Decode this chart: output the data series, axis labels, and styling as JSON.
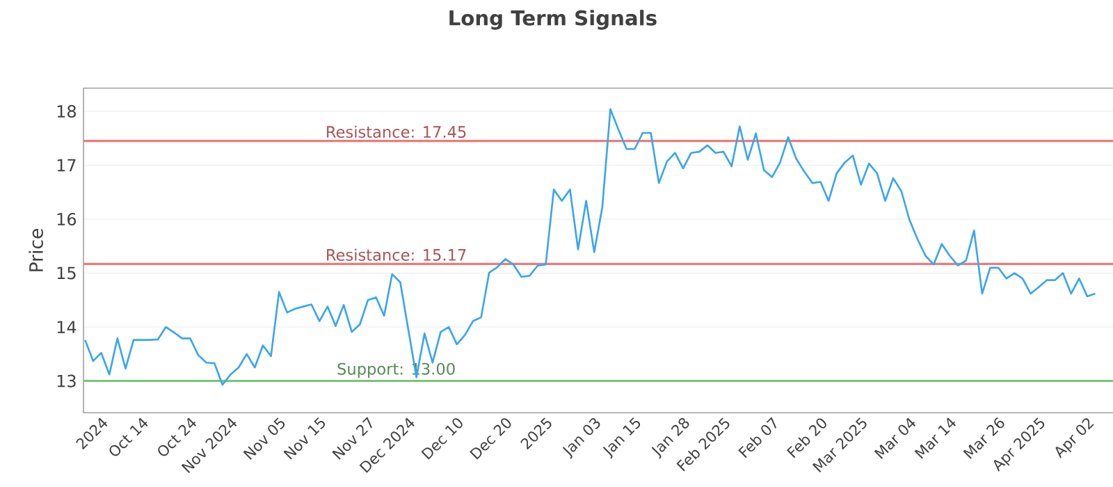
{
  "chart_data": {
    "type": "line",
    "title": "Long Term Signals",
    "ylabel": "Price",
    "categories": [
      null,
      null,
      "2024",
      null,
      null,
      null,
      null,
      "Oct 14",
      null,
      null,
      null,
      null,
      null,
      "Oct 24",
      null,
      null,
      null,
      null,
      "Nov 2024",
      null,
      null,
      null,
      null,
      null,
      "Nov 05",
      null,
      null,
      null,
      null,
      "Nov 15",
      null,
      null,
      null,
      null,
      null,
      "Nov 27",
      null,
      null,
      null,
      null,
      "Dec 2024",
      null,
      null,
      null,
      null,
      null,
      "Dec 10",
      null,
      null,
      null,
      null,
      null,
      "Dec 20",
      null,
      null,
      null,
      null,
      "2025",
      null,
      null,
      null,
      null,
      null,
      "Jan 03",
      null,
      null,
      null,
      null,
      "Jan 15",
      null,
      null,
      null,
      null,
      null,
      "Jan 28",
      null,
      null,
      null,
      null,
      "Feb 2025",
      null,
      null,
      null,
      null,
      null,
      "Feb 07",
      null,
      null,
      null,
      null,
      null,
      "Feb 20",
      null,
      null,
      null,
      null,
      "Mar 2025",
      null,
      null,
      null,
      null,
      null,
      "Mar 04",
      null,
      null,
      null,
      null,
      "Mar 14",
      null,
      null,
      null,
      null,
      null,
      "Mar 26",
      null,
      null,
      null,
      null,
      "Apr 2025",
      null,
      null,
      null,
      null,
      null,
      "Apr 02",
      null
    ],
    "ylim": [
      12.41,
      18.43
    ],
    "yticks": [
      13,
      14,
      15,
      16,
      17,
      18
    ],
    "grid": "y",
    "marker": "none",
    "line_style": "solid",
    "series": [
      {
        "color": "#3aa6ec",
        "values": [
          13.76,
          13.37,
          13.52,
          13.12,
          13.79,
          13.23,
          13.76,
          13.76,
          13.76,
          13.77,
          14.0,
          13.9,
          13.79,
          13.79,
          13.48,
          13.34,
          13.33,
          12.93,
          13.12,
          13.25,
          13.5,
          13.25,
          13.66,
          13.46,
          14.65,
          14.27,
          14.34,
          14.38,
          14.42,
          14.11,
          14.38,
          14.02,
          14.41,
          13.91,
          14.05,
          14.5,
          14.55,
          14.21,
          14.98,
          14.83,
          13.95,
          13.07,
          13.88,
          13.34,
          13.91,
          14.0,
          13.68,
          13.85,
          14.11,
          14.18,
          15.01,
          15.11,
          15.26,
          15.16,
          14.93,
          14.95,
          15.14,
          15.16,
          16.55,
          16.34,
          16.55,
          15.44,
          16.34,
          15.39,
          16.22,
          18.04,
          17.66,
          17.3,
          17.3,
          17.6,
          17.6,
          16.67,
          17.07,
          17.23,
          16.94,
          17.23,
          17.25,
          17.37,
          17.23,
          17.25,
          16.98,
          17.72,
          17.1,
          17.59,
          16.91,
          16.78,
          17.05,
          17.52,
          17.12,
          16.88,
          16.67,
          16.69,
          16.34,
          16.85,
          17.05,
          17.18,
          16.64,
          17.03,
          16.85,
          16.34,
          16.76,
          16.52,
          15.99,
          15.63,
          15.32,
          15.16,
          15.54,
          15.32,
          15.14,
          15.23,
          15.79,
          14.62,
          15.1,
          15.1,
          14.9,
          15.0,
          14.9,
          14.62,
          14.74,
          14.87,
          14.87,
          15.0,
          14.62,
          14.9,
          14.57,
          14.62
        ]
      }
    ],
    "ref_lines": [
      {
        "axis": "y",
        "value": 17.45,
        "label": "Resistance: 17.45",
        "color": "#ee7b7b"
      },
      {
        "axis": "y",
        "value": 15.17,
        "label": "Resistance: 15.17",
        "color": "#ee7b7b"
      },
      {
        "axis": "y",
        "value": 13.0,
        "label": "Support: 13.00",
        "color": "#7cc47c"
      }
    ]
  }
}
